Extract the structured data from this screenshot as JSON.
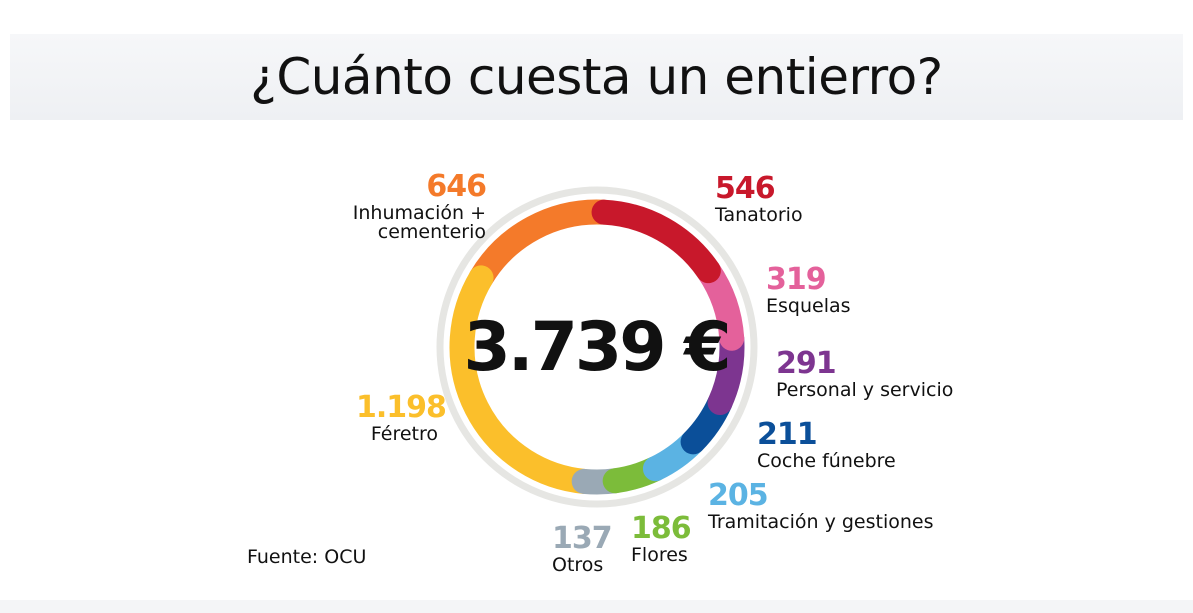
{
  "title": "¿Cuánto cuesta un entierro?",
  "source": "Fuente: OCU",
  "chart_data": {
    "type": "pie",
    "variant": "donut",
    "total_label": "3.739 €",
    "total": 3739,
    "unit": "€",
    "slices": [
      {
        "name": "Tanatorio",
        "label": "546",
        "value": 546,
        "color": "#c8182b"
      },
      {
        "name": "Esquelas",
        "label": "319",
        "value": 319,
        "color": "#e4619b"
      },
      {
        "name": "Personal y servicio",
        "label": "291",
        "value": 291,
        "color": "#7d3590"
      },
      {
        "name": "Coche fúnebre",
        "label": "211",
        "value": 211,
        "color": "#0b4f99"
      },
      {
        "name": "Tramitación y gestiones",
        "label": "205",
        "value": 205,
        "color": "#5bb3e3"
      },
      {
        "name": "Flores",
        "label": "186",
        "value": 186,
        "color": "#7cbc3a"
      },
      {
        "name": "Otros",
        "label": "137",
        "value": 137,
        "color": "#9aa9b5"
      },
      {
        "name": "Féretro",
        "label": "1.198",
        "value": 1198,
        "color": "#fbbf2b"
      },
      {
        "name": "Inhumación + cementerio",
        "label": "646",
        "value": 646,
        "color": "#f47a2a"
      }
    ]
  }
}
